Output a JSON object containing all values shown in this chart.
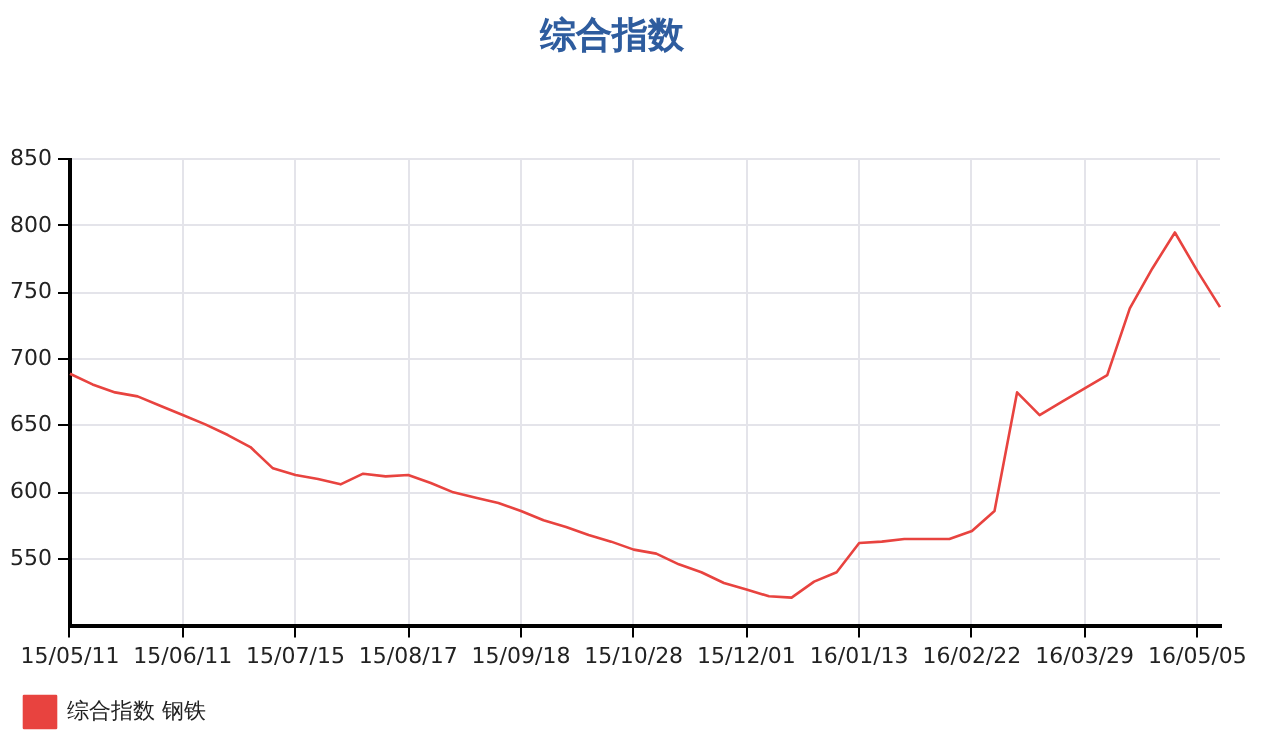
{
  "chart_data": {
    "type": "line",
    "title": "综合指数",
    "categories": [
      "15/05/11",
      null,
      null,
      null,
      null,
      "15/06/11",
      null,
      null,
      null,
      null,
      "15/07/15",
      null,
      null,
      null,
      null,
      "15/08/17",
      null,
      null,
      null,
      null,
      "15/09/18",
      null,
      null,
      null,
      null,
      "15/10/28",
      null,
      null,
      null,
      null,
      "15/12/01",
      null,
      null,
      null,
      null,
      "16/01/13",
      null,
      null,
      null,
      null,
      "16/02/22",
      null,
      null,
      null,
      null,
      "16/03/29",
      null,
      null,
      null,
      null,
      "16/05/05",
      null
    ],
    "series": [
      {
        "name": "综合指数 钢铁",
        "color": "#e8433f",
        "values": [
          689,
          681,
          675,
          672,
          665,
          658,
          651,
          643,
          634,
          618,
          613,
          610,
          606,
          614,
          612,
          613,
          607,
          600,
          596,
          592,
          586,
          579,
          574,
          568,
          563,
          557,
          554,
          546,
          540,
          532,
          527,
          522,
          521,
          533,
          540,
          562,
          563,
          565,
          565,
          565,
          571,
          586,
          675,
          658,
          668,
          678,
          688,
          738,
          768,
          795,
          766,
          739
        ]
      }
    ],
    "ylim": [
      500,
      850
    ],
    "yticks": [
      550,
      600,
      650,
      700,
      750,
      800,
      850
    ],
    "grid": true,
    "legend": "bottom left",
    "marker": "none",
    "line_style": "solid"
  }
}
